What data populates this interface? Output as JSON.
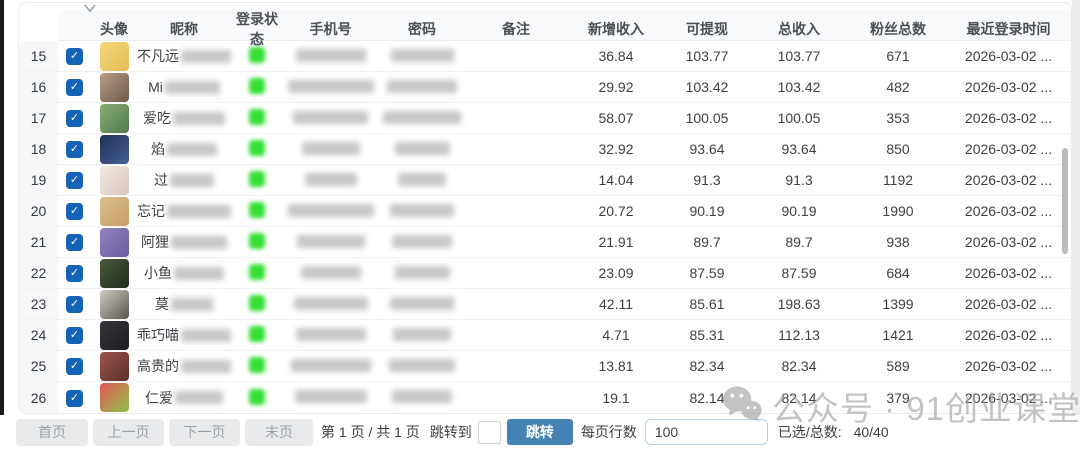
{
  "colors": {
    "accent": "#4483b3",
    "checkbox": "#1563b6",
    "status_online": "#35df35"
  },
  "table": {
    "headers": [
      "头像",
      "昵称",
      "登录状态",
      "手机号",
      "密码",
      "备注",
      "新增收入",
      "可提现",
      "总收入",
      "粉丝总数",
      "最近登录时间"
    ],
    "rows": [
      {
        "num": "15",
        "nick_prefix": "不凡远",
        "income": "36.84",
        "withdraw": "103.77",
        "total": "103.77",
        "fans": "671",
        "last_login": "2026-03-02 ...",
        "avatar_colors": [
          "#f3d57d",
          "#e6bd55"
        ],
        "nick_blur_w": 58,
        "phone_blur_w": 70,
        "pwd_blur_w": 63
      },
      {
        "num": "16",
        "nick_prefix": "Mi",
        "income": "29.92",
        "withdraw": "103.42",
        "total": "103.42",
        "fans": "482",
        "last_login": "2026-03-02 ...",
        "avatar_colors": [
          "#b59d87",
          "#6e5a4b"
        ],
        "nick_blur_w": 55,
        "phone_blur_w": 86,
        "pwd_blur_w": 70
      },
      {
        "num": "17",
        "nick_prefix": "爱吃",
        "income": "58.07",
        "withdraw": "100.05",
        "total": "100.05",
        "fans": "353",
        "last_login": "2026-03-02 ...",
        "avatar_colors": [
          "#8aac72",
          "#4f7a50"
        ],
        "nick_blur_w": 52,
        "phone_blur_w": 75,
        "pwd_blur_w": 78
      },
      {
        "num": "18",
        "nick_prefix": "焰",
        "income": "32.92",
        "withdraw": "93.64",
        "total": "93.64",
        "fans": "850",
        "last_login": "2026-03-02 ...",
        "avatar_colors": [
          "#233054",
          "#45609a"
        ],
        "nick_blur_w": 50,
        "phone_blur_w": 58,
        "pwd_blur_w": 55
      },
      {
        "num": "19",
        "nick_prefix": "过",
        "income": "14.04",
        "withdraw": "91.3",
        "total": "91.3",
        "fans": "1192",
        "last_login": "2026-03-02 ...",
        "avatar_colors": [
          "#f1e8e0",
          "#d8c6bb"
        ],
        "nick_blur_w": 44,
        "phone_blur_w": 52,
        "pwd_blur_w": 48
      },
      {
        "num": "20",
        "nick_prefix": "忘记",
        "income": "20.72",
        "withdraw": "90.19",
        "total": "90.19",
        "fans": "1990",
        "last_login": "2026-03-02 ...",
        "avatar_colors": [
          "#dcbd8f",
          "#c5a065"
        ],
        "nick_blur_w": 66,
        "phone_blur_w": 86,
        "pwd_blur_w": 64
      },
      {
        "num": "21",
        "nick_prefix": "阿狸",
        "income": "21.91",
        "withdraw": "89.7",
        "total": "89.7",
        "fans": "938",
        "last_login": "2026-03-02 ...",
        "avatar_colors": [
          "#9184c0",
          "#6b5ba0"
        ],
        "nick_blur_w": 56,
        "phone_blur_w": 68,
        "pwd_blur_w": 60
      },
      {
        "num": "22",
        "nick_prefix": "小鱼",
        "income": "23.09",
        "withdraw": "87.59",
        "total": "87.59",
        "fans": "684",
        "last_login": "2026-03-02 ...",
        "avatar_colors": [
          "#4a5a3a",
          "#202a1c"
        ],
        "nick_blur_w": 50,
        "phone_blur_w": 60,
        "pwd_blur_w": 55
      },
      {
        "num": "23",
        "nick_prefix": "莫",
        "income": "42.11",
        "withdraw": "85.61",
        "total": "198.63",
        "fans": "1399",
        "last_login": "2026-03-02 ...",
        "avatar_colors": [
          "#d0cbc3",
          "#59544d"
        ],
        "nick_blur_w": 42,
        "phone_blur_w": 74,
        "pwd_blur_w": 64
      },
      {
        "num": "24",
        "nick_prefix": "乖巧喵",
        "income": "4.71",
        "withdraw": "85.31",
        "total": "112.13",
        "fans": "1421",
        "last_login": "2026-03-02 ...",
        "avatar_colors": [
          "#35353b",
          "#1d1d22"
        ],
        "nick_blur_w": 62,
        "phone_blur_w": 70,
        "pwd_blur_w": 58
      },
      {
        "num": "25",
        "nick_prefix": "高贵的",
        "income": "13.81",
        "withdraw": "82.34",
        "total": "82.34",
        "fans": "589",
        "last_login": "2026-03-02 ...",
        "avatar_colors": [
          "#9a544a",
          "#5e2e2a"
        ],
        "nick_blur_w": 68,
        "phone_blur_w": 80,
        "pwd_blur_w": 66
      },
      {
        "num": "26",
        "nick_prefix": "仁爱",
        "income": "19.1",
        "withdraw": "82.14",
        "total": "82.14",
        "fans": "379",
        "last_login": "2026-03-02 ...",
        "avatar_colors": [
          "#e05555",
          "#8fc34a"
        ],
        "nick_blur_w": 48,
        "phone_blur_w": 72,
        "pwd_blur_w": 60
      }
    ]
  },
  "pagination": {
    "first": "首页",
    "prev": "上一页",
    "next": "下一页",
    "last": "末页",
    "page_info": "第 1 页 / 共 1 页",
    "jump_label": "跳转到",
    "jump_value": "",
    "jump_button": "跳转",
    "rows_label": "每页行数",
    "rows_value": "100",
    "selected_label": "已选/总数:",
    "selected_value": "40/40"
  },
  "watermark": {
    "icon": "wechat-icon",
    "text": "公众号 · 91创业课堂"
  }
}
